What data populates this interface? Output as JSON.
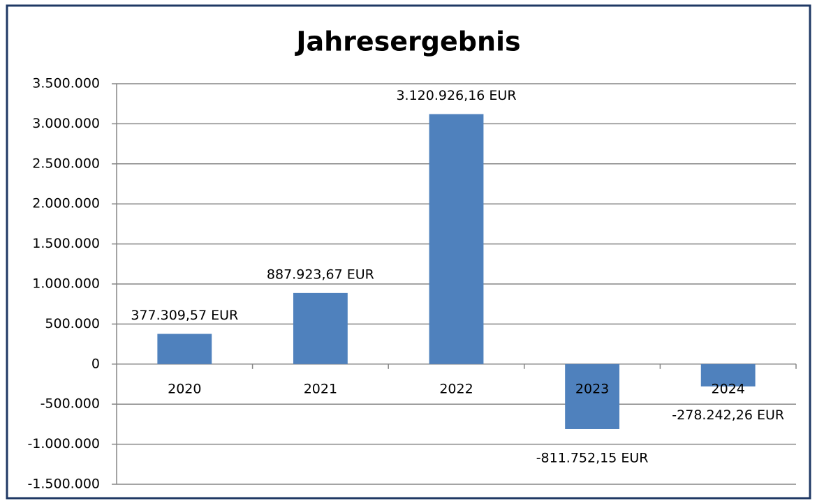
{
  "chart_data": {
    "type": "bar",
    "title": "Jahresergebnis",
    "categories": [
      "2020",
      "2021",
      "2022",
      "2023",
      "2024"
    ],
    "values": [
      377309.57,
      887923.67,
      3120926.16,
      -811752.15,
      -278242.26
    ],
    "value_labels": [
      "377.309,57 EUR",
      "887.923,67 EUR",
      "3.120.926,16 EUR",
      "-811.752,15 EUR",
      "-278.242,26 EUR"
    ],
    "color": "#4f81bd",
    "ylim": [
      -1500000,
      3500000
    ],
    "yticks": [
      {
        "value": -1500000,
        "label": "-1.500.000"
      },
      {
        "value": -1000000,
        "label": "-1.000.000"
      },
      {
        "value": -500000,
        "label": "-500.000"
      },
      0,
      {
        "value": 500000,
        "label": "500.000"
      },
      {
        "value": 1000000,
        "label": "1.000.000"
      },
      {
        "value": 1500000,
        "label": "1.500.000"
      },
      {
        "value": 2000000,
        "label": "2.000.000"
      },
      {
        "value": 2500000,
        "label": "2.500.000"
      },
      {
        "value": 3000000,
        "label": "3.000.000"
      },
      {
        "value": 3500000,
        "label": "3.500.000"
      }
    ],
    "grid": true
  }
}
